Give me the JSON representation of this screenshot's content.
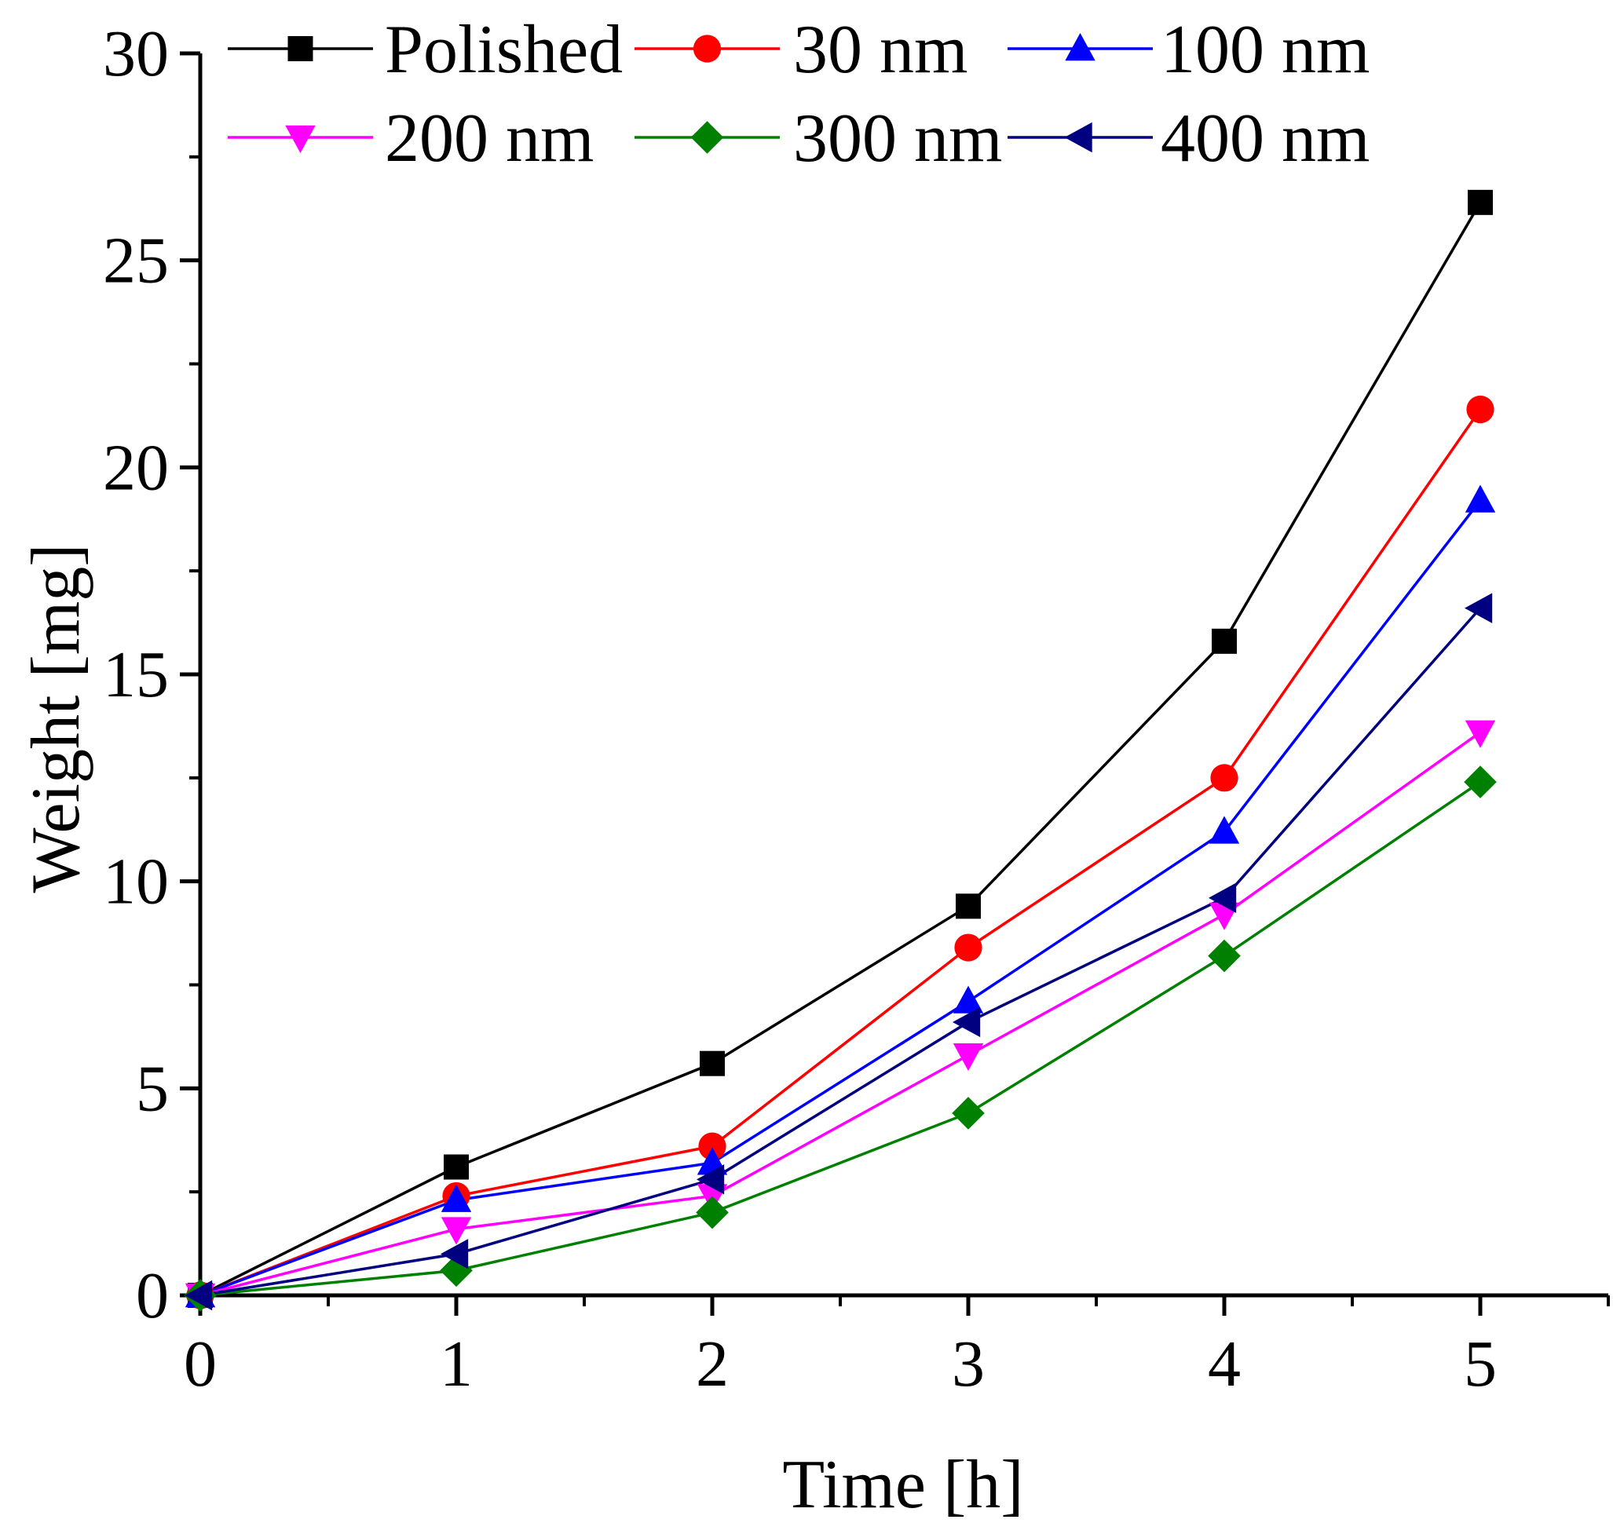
{
  "chart_data": {
    "type": "line",
    "title": "",
    "xlabel": "Time [h]",
    "ylabel": "Weight [mg]",
    "xlim": [
      0,
      5.5
    ],
    "ylim": [
      0,
      30
    ],
    "xticks": [
      0,
      1,
      2,
      3,
      4,
      5
    ],
    "yticks": [
      0,
      5,
      10,
      15,
      20,
      25,
      30
    ],
    "x_tick_labels": [
      "0",
      "1",
      "2",
      "3",
      "4",
      "5"
    ],
    "y_tick_labels": [
      "0",
      "5",
      "10",
      "15",
      "20",
      "25",
      "30"
    ],
    "x_minor_ticks": [
      0.5,
      1.5,
      2.5,
      3.5,
      4.5,
      5.5
    ],
    "y_minor_ticks": [
      2.5,
      7.5,
      12.5,
      17.5,
      22.5,
      27.5
    ],
    "grid": false,
    "legend_position": "top",
    "x": [
      0,
      1,
      2,
      3,
      4,
      5
    ],
    "series": [
      {
        "name": "Polished",
        "color": "#000000",
        "marker": "square",
        "values": [
          0,
          3.1,
          5.6,
          9.4,
          15.8,
          26.4
        ]
      },
      {
        "name": "30 nm",
        "color": "#ff0000",
        "marker": "circle",
        "values": [
          0,
          2.4,
          3.6,
          8.4,
          12.5,
          21.4
        ]
      },
      {
        "name": "100 nm",
        "color": "#0000ff",
        "marker": "triangle-up",
        "values": [
          0,
          2.3,
          3.2,
          7.1,
          11.2,
          19.2
        ]
      },
      {
        "name": "200 nm",
        "color": "#ff00ff",
        "marker": "triangle-down",
        "values": [
          0,
          1.6,
          2.4,
          5.8,
          9.2,
          13.6
        ]
      },
      {
        "name": "300 nm",
        "color": "#008000",
        "marker": "diamond",
        "values": [
          0,
          0.6,
          2.0,
          4.4,
          8.2,
          12.4
        ]
      },
      {
        "name": "400 nm",
        "color": "#000080",
        "marker": "triangle-left",
        "values": [
          0,
          1.0,
          2.8,
          6.6,
          9.6,
          16.6
        ]
      }
    ]
  }
}
